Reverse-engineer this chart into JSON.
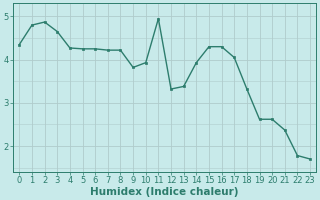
{
  "x": [
    0,
    1,
    2,
    3,
    4,
    5,
    6,
    7,
    8,
    9,
    10,
    11,
    12,
    13,
    14,
    15,
    16,
    17,
    18,
    19,
    20,
    21,
    22,
    23
  ],
  "y": [
    4.35,
    4.8,
    4.87,
    4.65,
    4.27,
    4.25,
    4.25,
    4.22,
    4.22,
    3.82,
    3.93,
    4.95,
    3.32,
    3.38,
    3.93,
    4.3,
    4.3,
    4.05,
    3.32,
    2.62,
    2.62,
    2.37,
    1.78,
    1.7
  ],
  "line_color": "#2d7d6d",
  "marker_color": "#2d7d6d",
  "bg_color": "#c8eaea",
  "grid_color": "#b0cccc",
  "xlabel": "Humidex (Indice chaleur)",
  "xlabel_fontsize": 7.5,
  "yticks": [
    2,
    3,
    4,
    5
  ],
  "xticks": [
    0,
    1,
    2,
    3,
    4,
    5,
    6,
    7,
    8,
    9,
    10,
    11,
    12,
    13,
    14,
    15,
    16,
    17,
    18,
    19,
    20,
    21,
    22,
    23
  ],
  "ylim": [
    1.4,
    5.3
  ],
  "xlim": [
    -0.5,
    23.5
  ],
  "tick_color": "#2d7d6d",
  "tick_fontsize": 6.0,
  "axis_color": "#2d7d6d",
  "linewidth": 1.0,
  "markersize": 2.0
}
